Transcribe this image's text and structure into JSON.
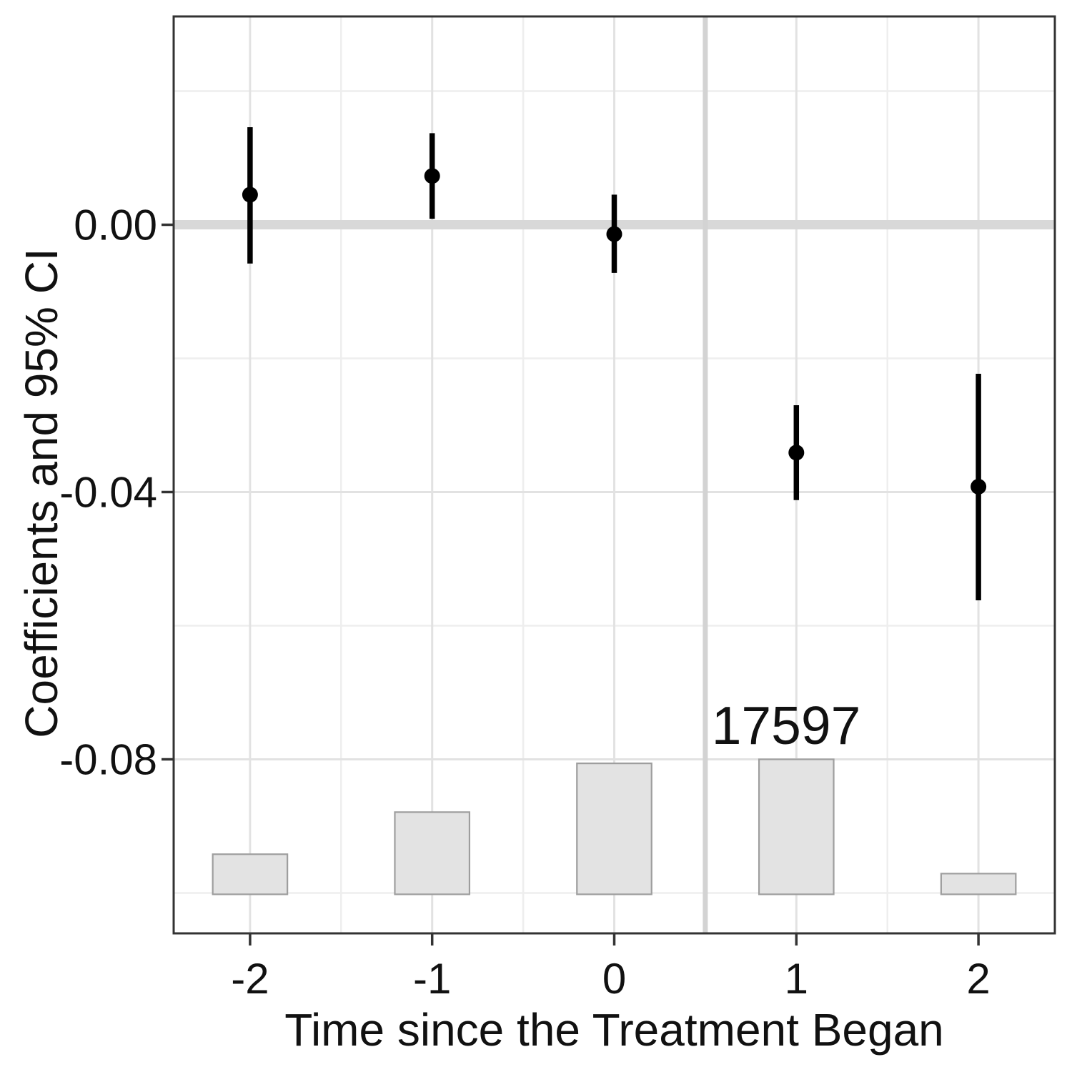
{
  "figure": {
    "xlabel": "Time since the Treatment Began",
    "ylabel": "Coefficients and 95% CI",
    "bar_count_label": "17597"
  },
  "colors": {
    "background": "#ffffff",
    "panel_border": "#333333",
    "grid_major": "#e2e2e2",
    "grid_minor": "#eeeeee",
    "zero_line": "#d8d8d8",
    "treatment_vline": "#d3d3d3",
    "point": "#000000",
    "errorbar": "#000000",
    "bar_fill": "#e3e3e3",
    "bar_stroke": "#9e9e9e",
    "tick": "#333333",
    "text": "#111111"
  },
  "chart_data": [
    {
      "type": "scatter",
      "subtype": "event-study coefficients with 95% CI error bars",
      "title": "",
      "xlabel": "Time since the Treatment Began",
      "ylabel": "Coefficients and 95% CI",
      "x": [
        -2,
        -1,
        0,
        1,
        2
      ],
      "x_tick_labels": [
        "-2",
        "-1",
        "0",
        "1",
        "2"
      ],
      "estimates": [
        0.0045,
        0.0073,
        -0.0014,
        -0.0341,
        -0.0392
      ],
      "ci_low": [
        -0.0058,
        0.0009,
        -0.0072,
        -0.0412,
        -0.0562
      ],
      "ci_high": [
        0.0146,
        0.0137,
        0.0045,
        -0.027,
        -0.0223
      ],
      "y_ticks": [
        {
          "label": "0.00",
          "value": 0.0
        },
        {
          "label": "-0.04",
          "value": -0.04
        },
        {
          "label": "-0.08",
          "value": -0.08
        }
      ],
      "y_minor": [
        0.02,
        -0.02,
        -0.06,
        -0.1
      ],
      "x_minor": [
        -1.5,
        -0.5,
        0.5,
        1.5
      ],
      "xlim": [
        -2.42,
        2.42
      ],
      "ylim": [
        -0.1062,
        0.0312
      ],
      "hline": 0.0,
      "vline": 0.5,
      "grid": "major+minor",
      "legend": "none"
    },
    {
      "type": "bar",
      "role": "observation-count histogram overlaid at bottom of panel",
      "categories": [
        -2,
        -1,
        0,
        1,
        2
      ],
      "baseline_axis_value": -0.1002,
      "top_axis_values": [
        -0.0942,
        -0.0879,
        -0.0806,
        -0.08,
        -0.0971
      ],
      "bar_width_in_x_units": 0.41,
      "label": {
        "x": 1,
        "text": "17597"
      },
      "approx_counts_from_scale": [
        5200,
        10700,
        17100,
        17597,
        2700
      ]
    }
  ]
}
